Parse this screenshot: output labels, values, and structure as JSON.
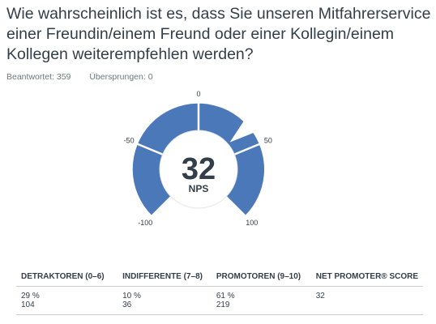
{
  "question": "Wie wahrscheinlich ist es, dass Sie unseren Mitfahrerservice einer Freundin/einem Freund oder einer Kollegin/einem Kollegen weiterempfehlen werden?",
  "stats": {
    "answered_label": "Beantwortet: 359",
    "skipped_label": "Übersprungen: 0"
  },
  "colors": {
    "gauge_fill": "#4a78b8",
    "text": "#333e48"
  },
  "chart_data": {
    "type": "gauge",
    "value": 32,
    "value_label": "NPS",
    "range": [
      -100,
      100
    ],
    "tick_labels": [
      "-100",
      "-50",
      "0",
      "50",
      "100"
    ],
    "ticks": [
      -100,
      -50,
      0,
      50,
      100
    ]
  },
  "table": {
    "headers": [
      "DETRAKTOREN (0–6)",
      "INDIFFERENTE (7–8)",
      "PROMOTOREN (9–10)",
      "NET PROMOTER® SCORE"
    ],
    "rows": [
      [
        "29 %",
        "10 %",
        "61 %",
        "32"
      ],
      [
        "104",
        "36",
        "219",
        ""
      ]
    ]
  }
}
